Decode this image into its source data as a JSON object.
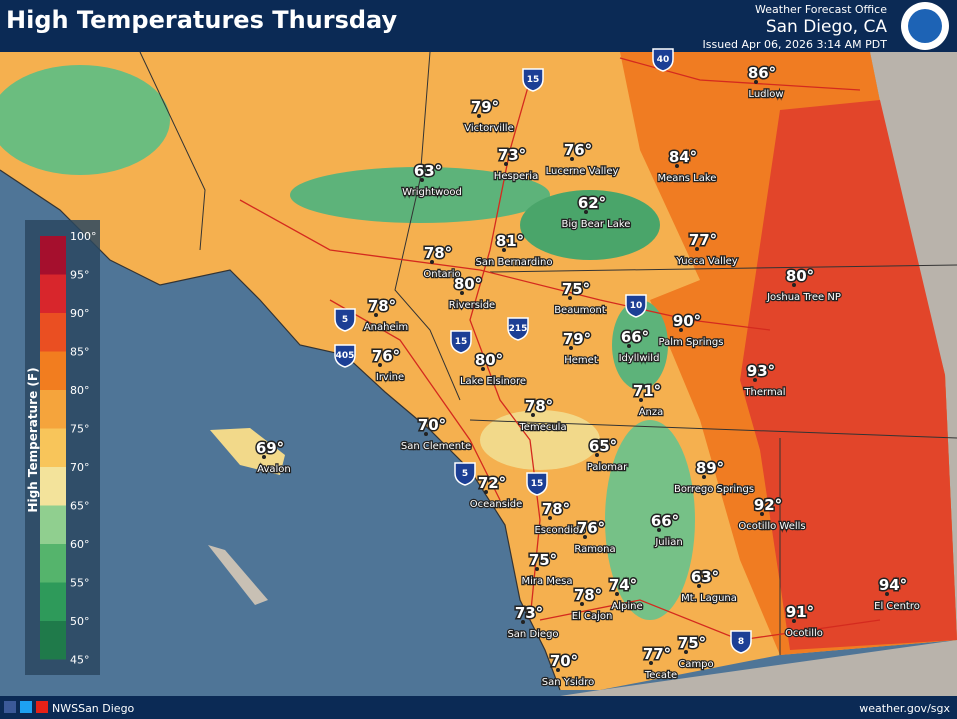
{
  "header": {
    "title": "High Temperatures Thursday",
    "office_label": "Weather Forecast Office",
    "office": "San Diego, CA",
    "issued": "Issued Apr 06, 2026 3:14 AM PDT"
  },
  "legend": {
    "title": "High Temperature (F)",
    "ticks": [
      "100°",
      "95°",
      "90°",
      "85°",
      "80°",
      "75°",
      "70°",
      "65°",
      "60°",
      "55°",
      "50°",
      "45°"
    ]
  },
  "highways": [
    "15",
    "40",
    "10",
    "5",
    "405",
    "15",
    "215",
    "5",
    "15",
    "8"
  ],
  "cities": [
    {
      "name": "Victorville",
      "temp": "79°"
    },
    {
      "name": "Hesperia",
      "temp": "73°"
    },
    {
      "name": "Lucerne Valley",
      "temp": "76°"
    },
    {
      "name": "Means Lake",
      "temp": "84°"
    },
    {
      "name": "Ludlow",
      "temp": "86°"
    },
    {
      "name": "Wrightwood",
      "temp": "63°"
    },
    {
      "name": "Big Bear Lake",
      "temp": "62°"
    },
    {
      "name": "Yucca Valley",
      "temp": "77°"
    },
    {
      "name": "Ontario",
      "temp": "78°"
    },
    {
      "name": "San Bernardino",
      "temp": "81°"
    },
    {
      "name": "Joshua Tree NP",
      "temp": "80°"
    },
    {
      "name": "Riverside",
      "temp": "80°"
    },
    {
      "name": "Beaumont",
      "temp": "75°"
    },
    {
      "name": "Anaheim",
      "temp": "78°"
    },
    {
      "name": "Hemet",
      "temp": "79°"
    },
    {
      "name": "Idyllwild",
      "temp": "66°"
    },
    {
      "name": "Palm Springs",
      "temp": "90°"
    },
    {
      "name": "Irvine",
      "temp": "76°"
    },
    {
      "name": "Lake Elsinore",
      "temp": "80°"
    },
    {
      "name": "Thermal",
      "temp": "93°"
    },
    {
      "name": "Anza",
      "temp": "71°"
    },
    {
      "name": "Temecula",
      "temp": "78°"
    },
    {
      "name": "San Clemente",
      "temp": "70°"
    },
    {
      "name": "Avalon",
      "temp": "69°"
    },
    {
      "name": "Palomar",
      "temp": "65°"
    },
    {
      "name": "Borrego Springs",
      "temp": "89°"
    },
    {
      "name": "Oceanside",
      "temp": "72°"
    },
    {
      "name": "Ocotillo Wells",
      "temp": "92°"
    },
    {
      "name": "Escondido",
      "temp": "78°"
    },
    {
      "name": "Ramona",
      "temp": "76°"
    },
    {
      "name": "Julian",
      "temp": "66°"
    },
    {
      "name": "Mira Mesa",
      "temp": "75°"
    },
    {
      "name": "Alpine",
      "temp": "74°"
    },
    {
      "name": "El Cajon",
      "temp": "78°"
    },
    {
      "name": "Mt. Laguna",
      "temp": "63°"
    },
    {
      "name": "El Centro",
      "temp": "94°"
    },
    {
      "name": "Ocotillo",
      "temp": "91°"
    },
    {
      "name": "San Diego",
      "temp": "73°"
    },
    {
      "name": "Campo",
      "temp": "75°"
    },
    {
      "name": "Tecate",
      "temp": "77°"
    },
    {
      "name": "San Ysidro",
      "temp": "70°"
    }
  ],
  "footer": {
    "social": "NWSSan Diego",
    "url": "weather.gov/sgx"
  }
}
